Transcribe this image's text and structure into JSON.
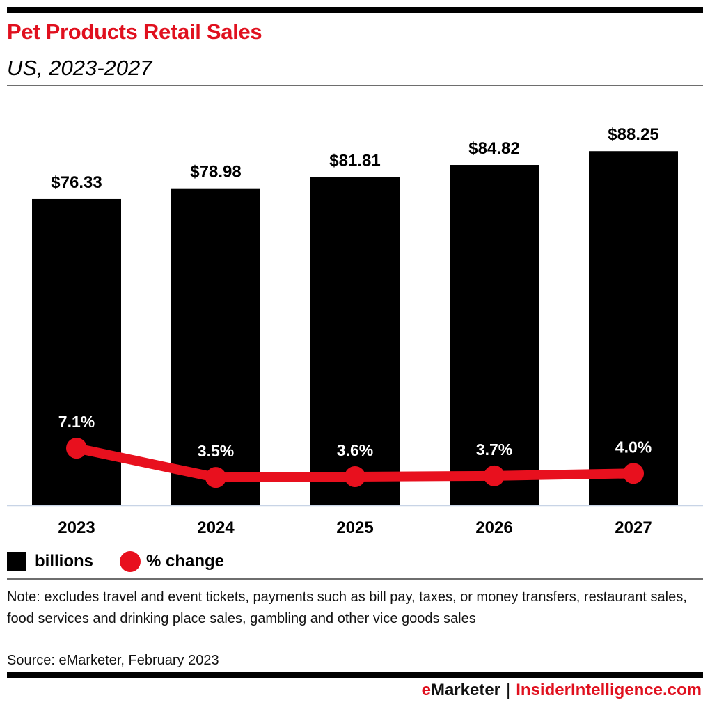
{
  "header": {
    "title": "Pet Products Retail Sales",
    "subtitle": "US, 2023-2027"
  },
  "legend": {
    "bars_label": "billions",
    "line_label": "% change"
  },
  "footer": {
    "note": "Note: excludes travel and event tickets, payments such as bill pay, taxes, or money transfers, restaurant sales, food services and drinking place sales, gambling and other vice goods sales",
    "source": "Source: eMarketer, February 2023",
    "brand_e": "e",
    "brand_marketer": "Marketer",
    "brand_sep": "|",
    "brand_site": "InsiderIntelligence.com"
  },
  "colors": {
    "accent": "#e0101e",
    "bars": "#000000",
    "line": "#e8101e",
    "baseline": "#c8d4e6"
  },
  "chart_data": {
    "type": "bar",
    "title": "Pet Products Retail Sales",
    "subtitle": "US, 2023-2027",
    "categories": [
      "2023",
      "2024",
      "2025",
      "2026",
      "2027"
    ],
    "series": [
      {
        "name": "billions",
        "type": "bar",
        "values": [
          76.33,
          78.98,
          81.81,
          84.82,
          88.25
        ],
        "labels": [
          "$76.33",
          "$78.98",
          "$81.81",
          "$84.82",
          "$88.25"
        ]
      },
      {
        "name": "% change",
        "type": "line",
        "values": [
          7.1,
          3.5,
          3.6,
          3.7,
          4.0
        ],
        "labels": [
          "7.1%",
          "3.5%",
          "3.6%",
          "3.7%",
          "4.0%"
        ]
      }
    ],
    "xlabel": "",
    "ylabel": "",
    "ylim": [
      0,
      88.25
    ],
    "grid": false,
    "legend_position": "bottom-left"
  }
}
